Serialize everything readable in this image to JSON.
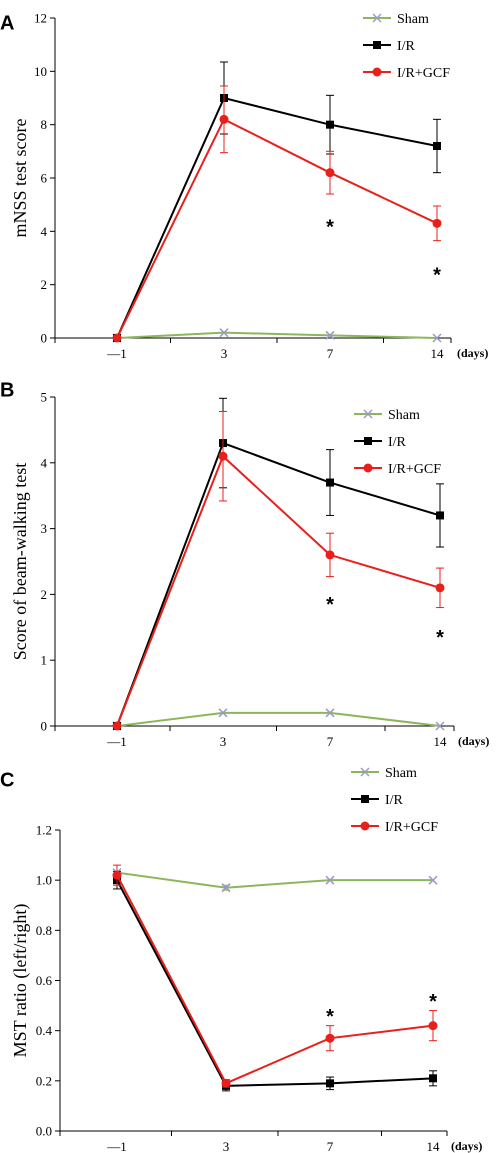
{
  "chart_data": [
    {
      "type": "line",
      "panel": "A",
      "ylabel": "mNSS  test score",
      "x_unit": "(days)",
      "categories": [
        "—1",
        "3",
        "7",
        "14"
      ],
      "ylim": [
        0,
        12
      ],
      "yticks": [
        "0",
        "2",
        "4",
        "6",
        "8",
        "10",
        "12"
      ],
      "legend_position": "top-right",
      "series": [
        {
          "name": "Sham",
          "color": "#8db65c",
          "marker": "x",
          "values": [
            0,
            0.2,
            0.1,
            0
          ],
          "errors": [
            0,
            0,
            0,
            0
          ]
        },
        {
          "name": "I/R",
          "color": "#000000",
          "marker": "square",
          "values": [
            0,
            9.0,
            8.0,
            7.2
          ],
          "errors": [
            0,
            1.35,
            1.1,
            1.0
          ]
        },
        {
          "name": "I/R+GCF",
          "color": "#e8201c",
          "marker": "circle",
          "values": [
            0,
            8.2,
            6.2,
            4.3
          ],
          "errors": [
            0,
            1.25,
            0.8,
            0.65
          ]
        }
      ],
      "annotations": [
        {
          "text": "*",
          "category": "7",
          "value": 4.3
        },
        {
          "text": "*",
          "category": "14",
          "value": 2.5
        }
      ]
    },
    {
      "type": "line",
      "panel": "B",
      "ylabel": "Score of beam-walking test",
      "x_unit": "(days)",
      "categories": [
        "—1",
        "3",
        "7",
        "14"
      ],
      "ylim": [
        0,
        5
      ],
      "yticks": [
        "0",
        "1",
        "2",
        "3",
        "4",
        "5"
      ],
      "legend_position": "top-right",
      "series": [
        {
          "name": "Sham",
          "color": "#8db65c",
          "marker": "x",
          "values": [
            0,
            0.2,
            0.2,
            0
          ],
          "errors": [
            0,
            0,
            0,
            0
          ]
        },
        {
          "name": "I/R",
          "color": "#000000",
          "marker": "square",
          "values": [
            0,
            4.3,
            3.7,
            3.2
          ],
          "errors": [
            0,
            0.68,
            0.5,
            0.48
          ]
        },
        {
          "name": "I/R+GCF",
          "color": "#e8201c",
          "marker": "circle",
          "values": [
            0,
            4.1,
            2.6,
            2.1
          ],
          "errors": [
            0,
            0.68,
            0.33,
            0.3
          ]
        }
      ],
      "annotations": [
        {
          "text": "*",
          "category": "7",
          "value": 1.9
        },
        {
          "text": "*",
          "category": "14",
          "value": 1.4
        }
      ]
    },
    {
      "type": "line",
      "panel": "C",
      "ylabel": "MST ratio (left/right)",
      "x_unit": "(days)",
      "categories": [
        "—1",
        "3",
        "7",
        "14"
      ],
      "ylim": [
        0,
        1.2
      ],
      "yticks": [
        "0.0",
        "0.2",
        "0.4",
        "0.6",
        "0.8",
        "1.0",
        "1.2"
      ],
      "legend_position": "top-right",
      "series": [
        {
          "name": "Sham",
          "color": "#8db65c",
          "marker": "x",
          "values": [
            1.03,
            0.97,
            1.0,
            1.0
          ],
          "errors": [
            0,
            0.01,
            0,
            0
          ]
        },
        {
          "name": "I/R",
          "color": "#000000",
          "marker": "square",
          "values": [
            1.0,
            0.18,
            0.19,
            0.21
          ],
          "errors": [
            0.035,
            0.02,
            0.025,
            0.03
          ]
        },
        {
          "name": "I/R+GCF",
          "color": "#e8201c",
          "marker": "circle",
          "values": [
            1.02,
            0.19,
            0.37,
            0.42
          ],
          "errors": [
            0.04,
            0.015,
            0.05,
            0.06
          ]
        }
      ],
      "annotations": [
        {
          "text": "*",
          "category": "7",
          "value": 0.47
        },
        {
          "text": "*",
          "category": "14",
          "value": 0.53
        }
      ]
    }
  ]
}
